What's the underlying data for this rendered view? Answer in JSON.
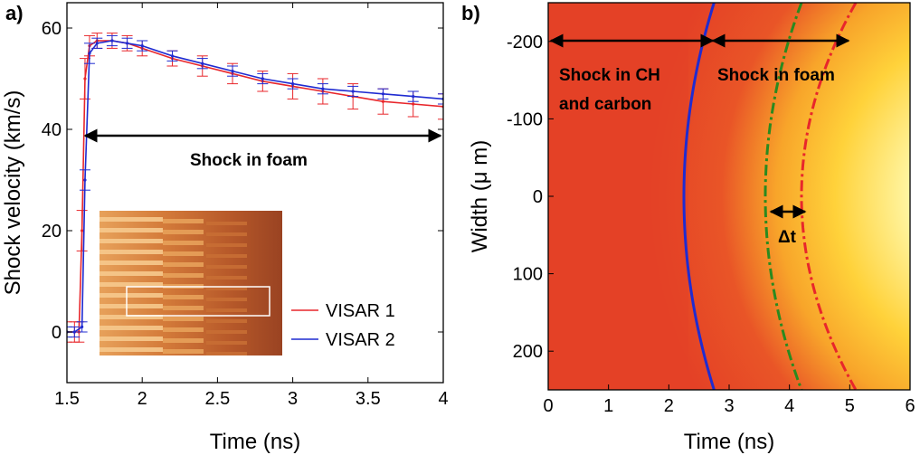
{
  "chart_data": [
    {
      "panel": "a)",
      "type": "line",
      "xlabel": "Time (ns)",
      "ylabel": "Shock velocity (km/s)",
      "xlim": [
        1.5,
        4.0
      ],
      "ylim": [
        -10,
        65
      ],
      "x_ticks": [
        "1.5",
        "2",
        "2.5",
        "3",
        "3.5",
        "4"
      ],
      "x_tick_values": [
        1.5,
        2.0,
        2.5,
        3.0,
        3.5,
        4.0
      ],
      "y_ticks": [
        "0",
        "20",
        "40",
        "60"
      ],
      "y_tick_values": [
        0,
        20,
        40,
        60
      ],
      "series": [
        {
          "name": "VISAR 1",
          "color": "#e8262b",
          "x": [
            1.5,
            1.55,
            1.58,
            1.6,
            1.62,
            1.65,
            1.7,
            1.8,
            1.9,
            2.0,
            2.2,
            2.4,
            2.6,
            2.8,
            3.0,
            3.2,
            3.4,
            3.6,
            3.8,
            4.0
          ],
          "y": [
            0,
            0,
            0,
            20,
            50,
            56.5,
            57.5,
            57.5,
            57,
            56,
            54,
            52.5,
            51,
            49.5,
            48.5,
            47.5,
            46.5,
            45.5,
            45,
            44.5
          ],
          "error": [
            2,
            2,
            2,
            4,
            4,
            2,
            1.5,
            1.5,
            1.5,
            1.5,
            1.5,
            2,
            2,
            2,
            2.5,
            2.5,
            2.5,
            2.5,
            2.5,
            2.5
          ]
        },
        {
          "name": "VISAR 2",
          "color": "#1f2bd1",
          "x": [
            1.5,
            1.55,
            1.6,
            1.62,
            1.65,
            1.7,
            1.8,
            1.9,
            2.0,
            2.2,
            2.4,
            2.6,
            2.8,
            3.0,
            3.2,
            3.4,
            3.6,
            3.8,
            4.0
          ],
          "y": [
            0,
            0,
            1,
            30,
            55,
            57,
            57.5,
            57,
            56.5,
            54.5,
            53,
            51.5,
            50,
            49,
            48,
            47.5,
            47,
            46.5,
            46
          ],
          "error": [
            1,
            1,
            1,
            2,
            2,
            1,
            1,
            1,
            1,
            1,
            1,
            1,
            1,
            1,
            1,
            1,
            1,
            1,
            1
          ]
        }
      ],
      "annotations": [
        {
          "text": "Shock in foam",
          "arrow_from_x": 1.62,
          "arrow_to_x": 4.0,
          "arrow_y": 39
        }
      ],
      "legend": {
        "position": "bottom-right"
      },
      "inset": "VISAR streak image"
    },
    {
      "panel": "b)",
      "type": "heatmap",
      "xlabel": "Time (ns)",
      "ylabel": "Width (μm)",
      "xlim": [
        0,
        6
      ],
      "ylim": [
        -250,
        250
      ],
      "y_inverted": true,
      "x_ticks": [
        "0",
        "1",
        "2",
        "3",
        "4",
        "5",
        "6"
      ],
      "x_tick_values": [
        0,
        1,
        2,
        3,
        4,
        5,
        6
      ],
      "y_ticks": [
        "-200",
        "-100",
        "0",
        "100",
        "200"
      ],
      "y_tick_values": [
        -200,
        -100,
        0,
        100,
        200
      ],
      "fronts": [
        {
          "color": "#1f2bd1",
          "style": "solid",
          "time_at_center": 2.25,
          "time_at_edge": 2.75
        },
        {
          "color": "#2a8a1f",
          "style": "dash-dot",
          "time_at_center": 3.6,
          "time_at_edge": 4.2
        },
        {
          "color": "#e8262b",
          "style": "dash-dot",
          "time_at_center": 4.2,
          "time_at_edge": 5.1
        }
      ],
      "annotations": [
        {
          "text": "Shock in CH and carbon",
          "arrow_from_x": 0,
          "arrow_to_x": 2.75,
          "arrow_y": -200
        },
        {
          "text": "Shock in foam",
          "arrow_from_x": 2.75,
          "arrow_to_x": 4.95,
          "arrow_y": -200
        },
        {
          "text": "Δt",
          "arrow_from_x": 3.6,
          "arrow_to_x": 4.2,
          "arrow_y": 0
        }
      ]
    }
  ],
  "labels": {
    "a_panel": "a)",
    "b_panel": "b)",
    "a_xlabel": "Time (ns)",
    "a_ylabel": "Shock velocity (km/s)",
    "b_xlabel": "Time (ns)",
    "b_ylabel": "Width (μ m)",
    "a_anno": "Shock in foam",
    "b_anno_ch_line1": "Shock in CH",
    "b_anno_ch_line2": "and carbon",
    "b_anno_foam": "Shock in foam",
    "b_anno_dt": "Δt",
    "legend_1": "VISAR 1",
    "legend_2": "VISAR 2"
  }
}
